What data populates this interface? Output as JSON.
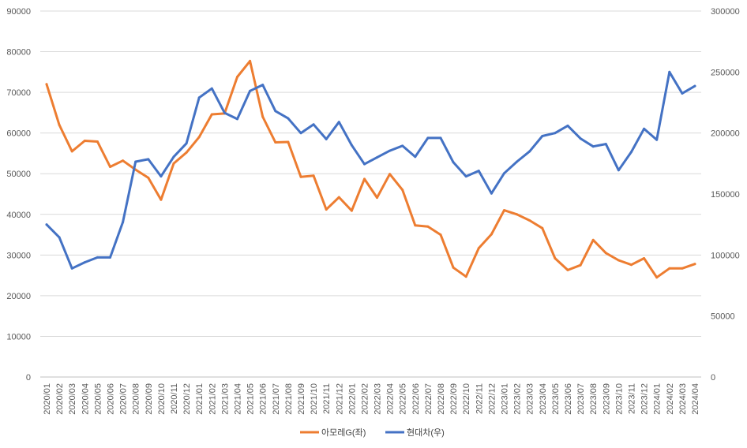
{
  "chart_data": {
    "type": "line",
    "title": "",
    "xlabel": "",
    "ylabel": "",
    "grid": true,
    "legend_position": "bottom",
    "x": [
      "2020/01",
      "2020/02",
      "2020/03",
      "2020/04",
      "2020/05",
      "2020/06",
      "2020/07",
      "2020/08",
      "2020/09",
      "2020/10",
      "2020/11",
      "2020/12",
      "2021/01",
      "2021/02",
      "2021/03",
      "2021/04",
      "2021/05",
      "2021/06",
      "2021/07",
      "2021/08",
      "2021/09",
      "2021/10",
      "2021/11",
      "2021/12",
      "2022/01",
      "2022/02",
      "2022/03",
      "2022/04",
      "2022/05",
      "2022/06",
      "2022/07",
      "2022/08",
      "2022/09",
      "2022/10",
      "2022/11",
      "2022/12",
      "2023/01",
      "2023/02",
      "2023/03",
      "2023/04",
      "2023/05",
      "2023/06",
      "2023/07",
      "2023/08",
      "2023/09",
      "2023/10",
      "2023/11",
      "2023/12",
      "2024/01",
      "2024/02",
      "2024/03",
      "2024/04"
    ],
    "y_left": {
      "min": 0,
      "max": 90000,
      "step": 10000,
      "ticks": [
        "0",
        "10000",
        "20000",
        "30000",
        "40000",
        "50000",
        "60000",
        "70000",
        "80000",
        "90000"
      ]
    },
    "y_right": {
      "min": 0,
      "max": 300000,
      "step": 50000,
      "ticks": [
        "0",
        "50000",
        "100000",
        "150000",
        "200000",
        "250000",
        "300000"
      ]
    },
    "series": [
      {
        "name": "아모레G(좌)",
        "axis": "left",
        "color": "#ED7D31",
        "values": [
          72000,
          62000,
          55500,
          58100,
          57900,
          51700,
          53200,
          51000,
          49000,
          43600,
          52500,
          55200,
          59000,
          64600,
          64800,
          73800,
          77700,
          64000,
          57700,
          57800,
          49200,
          49500,
          41200,
          44200,
          40900,
          48700,
          44100,
          49900,
          46000,
          37300,
          37000,
          35000,
          26900,
          24700,
          31700,
          35100,
          41000,
          40000,
          38500,
          36600,
          29200,
          26300,
          27500,
          33700,
          30500,
          28700,
          27600,
          29200,
          24500,
          26700,
          26700,
          27800
        ]
      },
      {
        "name": "현대차(우)",
        "axis": "right",
        "color": "#4472C4",
        "values": [
          125000,
          114500,
          89000,
          94000,
          98000,
          98000,
          127000,
          176500,
          178500,
          164500,
          180500,
          191500,
          229000,
          236500,
          216500,
          211500,
          234500,
          239500,
          218000,
          212000,
          200000,
          207000,
          195000,
          209000,
          190000,
          174500,
          180000,
          185500,
          189500,
          180500,
          196000,
          196000,
          176000,
          164500,
          169000,
          150500,
          167000,
          176500,
          185000,
          197500,
          200000,
          206000,
          195500,
          189000,
          191000,
          169500,
          184500,
          203500,
          194500,
          250000,
          232500,
          238500
        ]
      }
    ]
  }
}
